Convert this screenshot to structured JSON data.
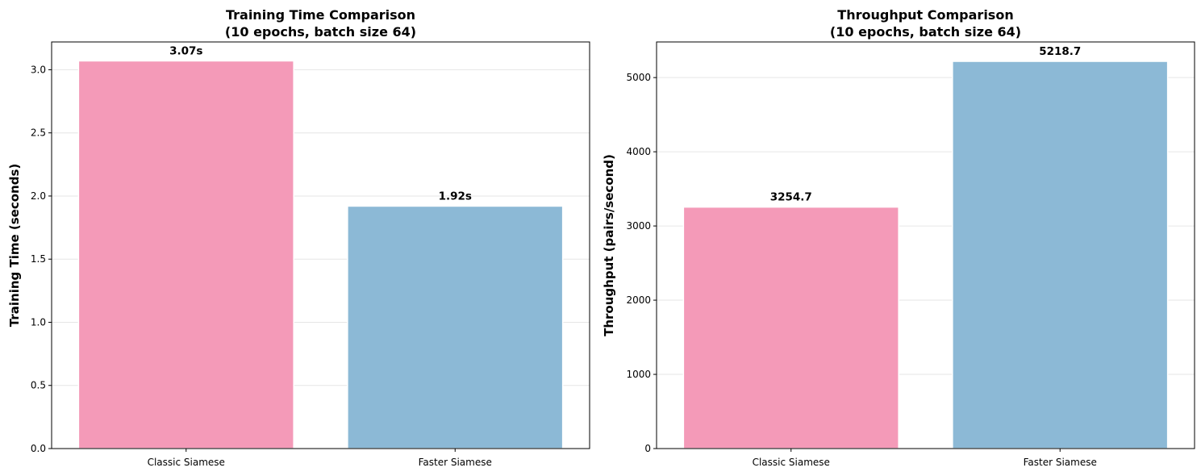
{
  "chart_data": [
    {
      "type": "bar",
      "title": "Training Time Comparison\n(10 epochs, batch size 64)",
      "xlabel": "",
      "ylabel": "Training Time (seconds)",
      "categories": [
        "Classic Siamese",
        "Faster Siamese"
      ],
      "values": [
        3.07,
        1.92
      ],
      "value_labels": [
        "3.07s",
        "1.92s"
      ],
      "bar_colors": [
        "#f49ab8",
        "#8cb9d6"
      ],
      "ylim": [
        0,
        3.22
      ],
      "yticks": [
        0.0,
        0.5,
        1.0,
        1.5,
        2.0,
        2.5,
        3.0
      ],
      "ytick_labels": [
        "0.0",
        "0.5",
        "1.0",
        "1.5",
        "2.0",
        "2.5",
        "3.0"
      ],
      "grid": "y"
    },
    {
      "type": "bar",
      "title": "Throughput Comparison\n(10 epochs, batch size 64)",
      "xlabel": "",
      "ylabel": "Throughput (pairs/second)",
      "categories": [
        "Classic Siamese",
        "Faster Siamese"
      ],
      "values": [
        3254.7,
        5218.7
      ],
      "value_labels": [
        "3254.7",
        "5218.7"
      ],
      "bar_colors": [
        "#f49ab8",
        "#8cb9d6"
      ],
      "ylim": [
        0,
        5480
      ],
      "yticks": [
        0,
        1000,
        2000,
        3000,
        4000,
        5000
      ],
      "ytick_labels": [
        "0",
        "1000",
        "2000",
        "3000",
        "4000",
        "5000"
      ],
      "grid": "y"
    }
  ]
}
